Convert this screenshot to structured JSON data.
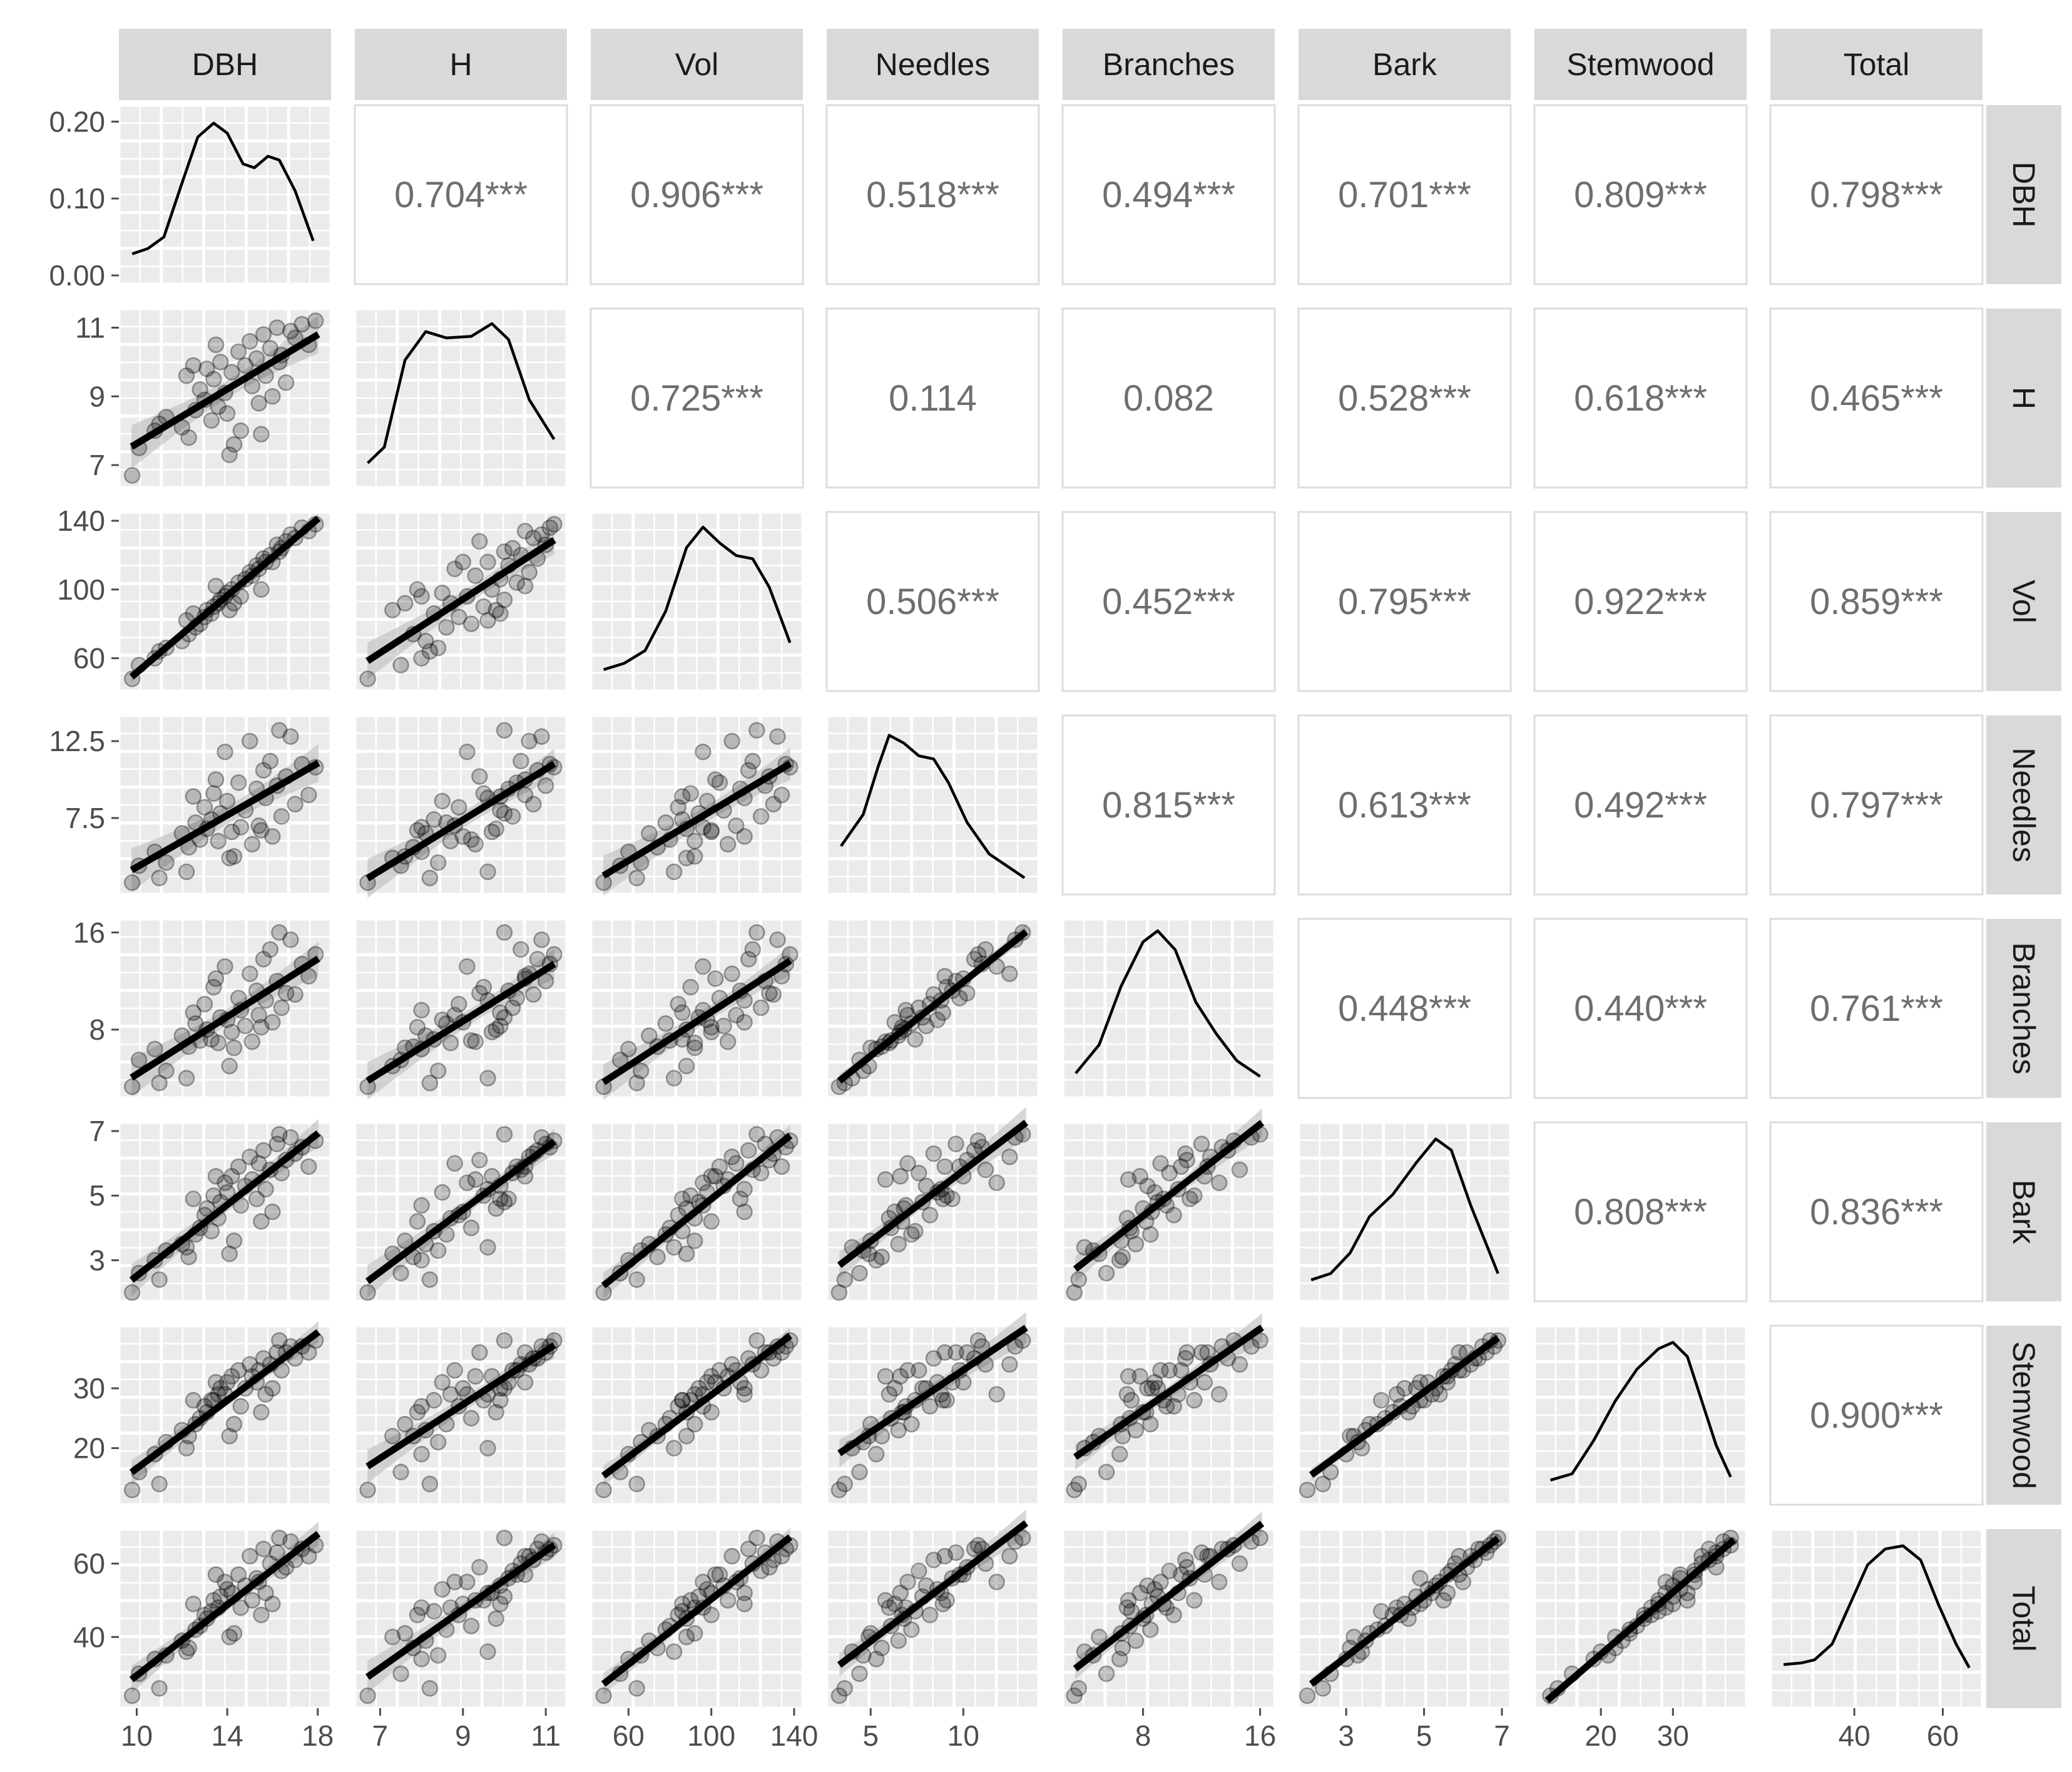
{
  "chart_data": {
    "type": "scatter",
    "variables": [
      "DBH",
      "H",
      "Vol",
      "Needles",
      "Branches",
      "Bark",
      "Stemwood",
      "Total"
    ],
    "ranges": {
      "DBH": [
        9.6,
        18.2
      ],
      "H": [
        6.6,
        11.3
      ],
      "Vol": [
        46,
        140
      ],
      "Needles": [
        3.1,
        13.6
      ],
      "Branches": [
        3.1,
        16.4
      ],
      "Bark": [
        2.0,
        7.0
      ],
      "Stemwood": [
        12,
        39
      ],
      "Total": [
        23,
        67
      ]
    },
    "axis_ticks": {
      "DBH": [
        10,
        14,
        18
      ],
      "H": [
        7,
        9,
        11
      ],
      "Vol": [
        60,
        100,
        140
      ],
      "Needles": [
        5,
        10
      ],
      "Branches": [
        8,
        16
      ],
      "Bark": [
        3,
        5,
        7
      ],
      "Stemwood": [
        20,
        30
      ],
      "Total": [
        40,
        60
      ]
    },
    "y_ticks": {
      "DBH": [
        "0.00",
        "0.10",
        "0.20"
      ],
      "H": [
        7,
        9,
        11
      ],
      "Vol": [
        60,
        100,
        140
      ],
      "Needles": [
        "7.5",
        "12.5"
      ],
      "Branches": [
        8,
        16
      ],
      "Bark": [
        3,
        5,
        7
      ],
      "Stemwood": [
        20,
        30
      ],
      "Total": [
        40,
        60
      ]
    },
    "dbh_density_ylim": [
      0,
      0.21
    ],
    "correlations": [
      [
        "0.704***",
        "0.906***",
        "0.518***",
        "0.494***",
        "0.701***",
        "0.809***",
        "0.798***"
      ],
      [
        "0.725***",
        "0.114",
        "0.082",
        "0.528***",
        "0.618***",
        "0.465***"
      ],
      [
        "0.506***",
        "0.452***",
        "0.795***",
        "0.922***",
        "0.859***"
      ],
      [
        "0.815***",
        "0.613***",
        "0.492***",
        "0.797***"
      ],
      [
        "0.448***",
        "0.440***",
        "0.761***"
      ],
      [
        "0.808***",
        "0.836***"
      ],
      [
        "0.900***"
      ]
    ],
    "densities": {
      "DBH": [
        [
          9.8,
          0.028
        ],
        [
          10.5,
          0.035
        ],
        [
          11.2,
          0.05
        ],
        [
          12.0,
          0.12
        ],
        [
          12.7,
          0.18
        ],
        [
          13.4,
          0.198
        ],
        [
          14.0,
          0.185
        ],
        [
          14.7,
          0.145
        ],
        [
          15.2,
          0.14
        ],
        [
          15.8,
          0.155
        ],
        [
          16.3,
          0.15
        ],
        [
          17.0,
          0.11
        ],
        [
          17.8,
          0.045
        ]
      ],
      "H": [
        [
          6.7,
          0.1
        ],
        [
          7.1,
          0.2
        ],
        [
          7.6,
          0.75
        ],
        [
          8.1,
          0.93
        ],
        [
          8.6,
          0.89
        ],
        [
          9.2,
          0.9
        ],
        [
          9.7,
          0.98
        ],
        [
          10.1,
          0.88
        ],
        [
          10.6,
          0.5
        ],
        [
          11.2,
          0.25
        ]
      ],
      "Vol": [
        [
          48,
          0.08
        ],
        [
          58,
          0.12
        ],
        [
          68,
          0.2
        ],
        [
          78,
          0.45
        ],
        [
          88,
          0.85
        ],
        [
          96,
          0.98
        ],
        [
          104,
          0.88
        ],
        [
          112,
          0.8
        ],
        [
          120,
          0.78
        ],
        [
          128,
          0.6
        ],
        [
          138,
          0.25
        ]
      ],
      "Needles": [
        [
          3.4,
          0.25
        ],
        [
          4.6,
          0.45
        ],
        [
          5.4,
          0.75
        ],
        [
          6.0,
          0.95
        ],
        [
          6.8,
          0.9
        ],
        [
          7.6,
          0.82
        ],
        [
          8.4,
          0.8
        ],
        [
          9.2,
          0.65
        ],
        [
          10.2,
          0.4
        ],
        [
          11.4,
          0.2
        ],
        [
          13.3,
          0.05
        ]
      ],
      "Branches": [
        [
          3.4,
          0.1
        ],
        [
          5.0,
          0.28
        ],
        [
          6.5,
          0.65
        ],
        [
          8.0,
          0.93
        ],
        [
          9.0,
          1.0
        ],
        [
          10.2,
          0.88
        ],
        [
          11.6,
          0.55
        ],
        [
          13.0,
          0.35
        ],
        [
          14.4,
          0.18
        ],
        [
          16.0,
          0.08
        ]
      ],
      "Bark": [
        [
          2.1,
          0.08
        ],
        [
          2.6,
          0.12
        ],
        [
          3.1,
          0.25
        ],
        [
          3.6,
          0.48
        ],
        [
          4.2,
          0.62
        ],
        [
          4.8,
          0.82
        ],
        [
          5.3,
          0.97
        ],
        [
          5.7,
          0.9
        ],
        [
          6.2,
          0.55
        ],
        [
          6.9,
          0.12
        ]
      ],
      "Stemwood": [
        [
          13,
          0.1
        ],
        [
          16,
          0.14
        ],
        [
          19,
          0.35
        ],
        [
          22,
          0.6
        ],
        [
          25,
          0.8
        ],
        [
          28,
          0.93
        ],
        [
          30,
          0.97
        ],
        [
          32,
          0.88
        ],
        [
          34,
          0.6
        ],
        [
          36,
          0.32
        ],
        [
          38,
          0.12
        ]
      ],
      "Total": [
        [
          24,
          0.22
        ],
        [
          28,
          0.23
        ],
        [
          31,
          0.25
        ],
        [
          35,
          0.35
        ],
        [
          39,
          0.6
        ],
        [
          43,
          0.85
        ],
        [
          47,
          0.95
        ],
        [
          51,
          0.97
        ],
        [
          55,
          0.88
        ],
        [
          59,
          0.6
        ],
        [
          63,
          0.35
        ],
        [
          66,
          0.2
        ]
      ]
    },
    "observations": [
      {
        "DBH": 9.8,
        "H": 6.7,
        "Vol": 48,
        "Needles": 3.3,
        "Branches": 3.3,
        "Bark": 2.0,
        "Stemwood": 13,
        "Total": 24
      },
      {
        "DBH": 10.1,
        "H": 7.5,
        "Vol": 56,
        "Needles": 4.4,
        "Branches": 5.5,
        "Bark": 2.6,
        "Stemwood": 16,
        "Total": 30
      },
      {
        "DBH": 10.8,
        "H": 8.0,
        "Vol": 60,
        "Needles": 5.3,
        "Branches": 6.4,
        "Bark": 3.0,
        "Stemwood": 19,
        "Total": 34
      },
      {
        "DBH": 11.3,
        "H": 8.4,
        "Vol": 66,
        "Needles": 4.6,
        "Branches": 4.6,
        "Bark": 3.3,
        "Stemwood": 21,
        "Total": 35
      },
      {
        "DBH": 12.0,
        "H": 8.1,
        "Vol": 70,
        "Needles": 6.5,
        "Branches": 7.5,
        "Bark": 3.5,
        "Stemwood": 23,
        "Total": 39
      },
      {
        "DBH": 12.3,
        "H": 7.8,
        "Vol": 74,
        "Needles": 5.6,
        "Branches": 6.6,
        "Bark": 3.1,
        "Stemwood": 22,
        "Total": 37
      },
      {
        "DBH": 12.6,
        "H": 8.6,
        "Vol": 78,
        "Needles": 7.2,
        "Branches": 8.5,
        "Bark": 3.8,
        "Stemwood": 24,
        "Total": 42
      },
      {
        "DBH": 12.8,
        "H": 9.2,
        "Vol": 80,
        "Needles": 6.1,
        "Branches": 7.1,
        "Bark": 4.0,
        "Stemwood": 25,
        "Total": 43
      },
      {
        "DBH": 13.0,
        "H": 8.9,
        "Vol": 84,
        "Needles": 8.2,
        "Branches": 10.1,
        "Bark": 4.4,
        "Stemwood": 27,
        "Total": 46
      },
      {
        "DBH": 13.1,
        "H": 9.8,
        "Vol": 88,
        "Needles": 6.8,
        "Branches": 8.0,
        "Bark": 4.6,
        "Stemwood": 26,
        "Total": 45
      },
      {
        "DBH": 13.3,
        "H": 8.3,
        "Vol": 86,
        "Needles": 7.4,
        "Branches": 7.2,
        "Bark": 3.9,
        "Stemwood": 28,
        "Total": 47
      },
      {
        "DBH": 13.4,
        "H": 9.5,
        "Vol": 90,
        "Needles": 9.1,
        "Branches": 11.5,
        "Bark": 5.0,
        "Stemwood": 28,
        "Total": 50
      },
      {
        "DBH": 13.6,
        "H": 8.7,
        "Vol": 92,
        "Needles": 6.0,
        "Branches": 6.9,
        "Bark": 4.3,
        "Stemwood": 29,
        "Total": 48
      },
      {
        "DBH": 13.7,
        "H": 10.0,
        "Vol": 94,
        "Needles": 7.8,
        "Branches": 9.0,
        "Bark": 4.8,
        "Stemwood": 30,
        "Total": 51
      },
      {
        "DBH": 13.9,
        "H": 9.1,
        "Vol": 96,
        "Needles": 11.8,
        "Branches": 13.2,
        "Bark": 5.4,
        "Stemwood": 29,
        "Total": 55
      },
      {
        "DBH": 14.0,
        "H": 8.5,
        "Vol": 98,
        "Needles": 8.6,
        "Branches": 8.8,
        "Bark": 5.1,
        "Stemwood": 31,
        "Total": 53
      },
      {
        "DBH": 14.2,
        "H": 9.7,
        "Vol": 100,
        "Needles": 6.6,
        "Branches": 7.8,
        "Bark": 5.6,
        "Stemwood": 32,
        "Total": 52
      },
      {
        "DBH": 14.3,
        "H": 7.6,
        "Vol": 92,
        "Needles": 5.0,
        "Branches": 6.5,
        "Bark": 3.6,
        "Stemwood": 24,
        "Total": 41
      },
      {
        "DBH": 14.5,
        "H": 10.3,
        "Vol": 104,
        "Needles": 9.8,
        "Branches": 10.6,
        "Bark": 5.9,
        "Stemwood": 33,
        "Total": 57
      },
      {
        "DBH": 14.6,
        "H": 8.0,
        "Vol": 96,
        "Needles": 6.9,
        "Branches": 9.6,
        "Bark": 4.7,
        "Stemwood": 27,
        "Total": 48
      },
      {
        "DBH": 14.8,
        "H": 9.9,
        "Vol": 106,
        "Needles": 8.0,
        "Branches": 8.3,
        "Bark": 5.3,
        "Stemwood": 30,
        "Total": 54
      },
      {
        "DBH": 15.0,
        "H": 10.6,
        "Vol": 110,
        "Needles": 12.5,
        "Branches": 12.6,
        "Bark": 6.2,
        "Stemwood": 34,
        "Total": 62
      },
      {
        "DBH": 15.1,
        "H": 9.3,
        "Vol": 108,
        "Needles": 5.8,
        "Branches": 7.0,
        "Bark": 5.5,
        "Stemwood": 32,
        "Total": 50
      },
      {
        "DBH": 15.3,
        "H": 10.1,
        "Vol": 114,
        "Needles": 9.4,
        "Branches": 11.2,
        "Bark": 4.9,
        "Stemwood": 31,
        "Total": 56
      },
      {
        "DBH": 15.4,
        "H": 8.8,
        "Vol": 112,
        "Needles": 7.0,
        "Branches": 9.2,
        "Bark": 6.0,
        "Stemwood": 33,
        "Total": 55
      },
      {
        "DBH": 15.6,
        "H": 10.8,
        "Vol": 118,
        "Needles": 10.6,
        "Branches": 13.8,
        "Bark": 6.4,
        "Stemwood": 35,
        "Total": 64
      },
      {
        "DBH": 15.7,
        "H": 9.6,
        "Vol": 116,
        "Needles": 8.8,
        "Branches": 10.4,
        "Bark": 5.2,
        "Stemwood": 29,
        "Total": 52
      },
      {
        "DBH": 15.9,
        "H": 10.4,
        "Vol": 120,
        "Needles": 11.2,
        "Branches": 14.6,
        "Bark": 5.8,
        "Stemwood": 34,
        "Total": 60
      },
      {
        "DBH": 16.0,
        "H": 9.0,
        "Vol": 116,
        "Needles": 6.3,
        "Branches": 8.6,
        "Bark": 4.5,
        "Stemwood": 30,
        "Total": 49
      },
      {
        "DBH": 16.2,
        "H": 11.0,
        "Vol": 126,
        "Needles": 9.6,
        "Branches": 12.0,
        "Bark": 6.6,
        "Stemwood": 36,
        "Total": 63
      },
      {
        "DBH": 16.4,
        "H": 10.2,
        "Vol": 124,
        "Needles": 7.6,
        "Branches": 9.8,
        "Bark": 5.7,
        "Stemwood": 33,
        "Total": 58
      },
      {
        "DBH": 16.6,
        "H": 9.4,
        "Vol": 128,
        "Needles": 10.2,
        "Branches": 11.0,
        "Bark": 6.1,
        "Stemwood": 36,
        "Total": 59
      },
      {
        "DBH": 16.8,
        "H": 10.9,
        "Vol": 132,
        "Needles": 12.8,
        "Branches": 15.4,
        "Bark": 6.8,
        "Stemwood": 37,
        "Total": 66
      },
      {
        "DBH": 17.0,
        "H": 10.7,
        "Vol": 130,
        "Needles": 8.4,
        "Branches": 10.9,
        "Bark": 6.3,
        "Stemwood": 35,
        "Total": 61
      },
      {
        "DBH": 17.3,
        "H": 11.1,
        "Vol": 136,
        "Needles": 11.0,
        "Branches": 13.4,
        "Bark": 6.5,
        "Stemwood": 37,
        "Total": 64
      },
      {
        "DBH": 17.6,
        "H": 10.5,
        "Vol": 134,
        "Needles": 9.0,
        "Branches": 12.4,
        "Bark": 5.9,
        "Stemwood": 36,
        "Total": 62
      },
      {
        "DBH": 17.9,
        "H": 11.2,
        "Vol": 138,
        "Needles": 10.8,
        "Branches": 14.2,
        "Bark": 6.7,
        "Stemwood": 38,
        "Total": 65
      },
      {
        "DBH": 12.2,
        "H": 9.6,
        "Vol": 82,
        "Needles": 4.0,
        "Branches": 4.0,
        "Bark": 3.4,
        "Stemwood": 20,
        "Total": 36
      },
      {
        "DBH": 11.0,
        "H": 8.2,
        "Vol": 64,
        "Needles": 3.6,
        "Branches": 3.6,
        "Bark": 2.4,
        "Stemwood": 14,
        "Total": 26
      },
      {
        "DBH": 14.1,
        "H": 7.3,
        "Vol": 88,
        "Needles": 4.9,
        "Branches": 5.0,
        "Bark": 3.2,
        "Stemwood": 22,
        "Total": 40
      },
      {
        "DBH": 16.3,
        "H": 10.0,
        "Vol": 122,
        "Needles": 13.2,
        "Branches": 16.0,
        "Bark": 6.9,
        "Stemwood": 38,
        "Total": 67
      },
      {
        "DBH": 13.5,
        "H": 10.5,
        "Vol": 102,
        "Needles": 10.0,
        "Branches": 12.2,
        "Bark": 5.6,
        "Stemwood": 31,
        "Total": 57
      },
      {
        "DBH": 15.5,
        "H": 7.9,
        "Vol": 100,
        "Needles": 6.7,
        "Branches": 8.2,
        "Bark": 4.2,
        "Stemwood": 26,
        "Total": 46
      },
      {
        "DBH": 12.5,
        "H": 9.9,
        "Vol": 86,
        "Needles": 8.9,
        "Branches": 9.4,
        "Bark": 4.9,
        "Stemwood": 28,
        "Total": 49
      }
    ]
  }
}
